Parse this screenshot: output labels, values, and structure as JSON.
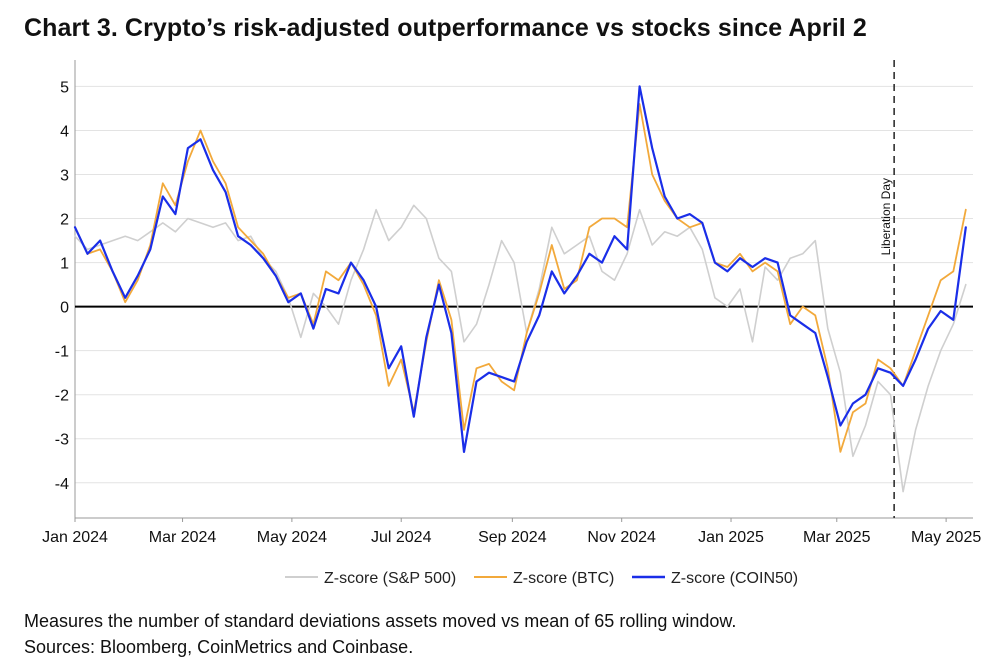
{
  "title": "Chart 3. Crypto’s risk-adjusted outperformance vs stocks since April 2",
  "notes": {
    "line1": "Measures the number of standard deviations assets moved vs mean of 65 rolling window.",
    "line2": "Sources: Bloomberg, CoinMetrics and Coinbase."
  },
  "chart_data": {
    "type": "line",
    "title": "Chart 3. Crypto’s risk-adjusted outperformance vs stocks since April 2",
    "xlabel": "",
    "ylabel": "",
    "x_range": [
      "2024-01-01",
      "2025-05-16"
    ],
    "ylim": [
      -4.8,
      5.6
    ],
    "yticks": [
      5,
      4,
      3,
      2,
      1,
      0,
      -1,
      -2,
      -3,
      -4
    ],
    "xticks": [
      {
        "date": "2024-01-01",
        "label": "Jan 2024"
      },
      {
        "date": "2024-03-01",
        "label": "Mar 2024"
      },
      {
        "date": "2024-05-01",
        "label": "May 2024"
      },
      {
        "date": "2024-07-01",
        "label": "Jul 2024"
      },
      {
        "date": "2024-09-01",
        "label": "Sep 2024"
      },
      {
        "date": "2024-11-01",
        "label": "Nov 2024"
      },
      {
        "date": "2025-01-01",
        "label": "Jan 2025"
      },
      {
        "date": "2025-03-01",
        "label": "Mar 2025"
      },
      {
        "date": "2025-05-01",
        "label": "May 2025"
      }
    ],
    "grid": "horizontal",
    "legend_position": "bottom-center",
    "annotation": {
      "label": "Liberation Day",
      "date": "2025-04-02",
      "style": "dashed-vertical"
    },
    "series": [
      {
        "name": "Z-score (S&P 500)",
        "color": "#cfcfcf",
        "points": [
          [
            "2024-01-01",
            1.6
          ],
          [
            "2024-01-08",
            1.3
          ],
          [
            "2024-01-15",
            1.4
          ],
          [
            "2024-01-22",
            1.5
          ],
          [
            "2024-01-29",
            1.6
          ],
          [
            "2024-02-05",
            1.5
          ],
          [
            "2024-02-12",
            1.7
          ],
          [
            "2024-02-19",
            1.9
          ],
          [
            "2024-02-26",
            1.7
          ],
          [
            "2024-03-04",
            2.0
          ],
          [
            "2024-03-11",
            1.9
          ],
          [
            "2024-03-18",
            1.8
          ],
          [
            "2024-03-25",
            1.9
          ],
          [
            "2024-04-01",
            1.5
          ],
          [
            "2024-04-08",
            1.6
          ],
          [
            "2024-04-15",
            1.1
          ],
          [
            "2024-04-22",
            0.8
          ],
          [
            "2024-04-29",
            0.2
          ],
          [
            "2024-05-06",
            -0.7
          ],
          [
            "2024-05-13",
            0.3
          ],
          [
            "2024-05-20",
            0.0
          ],
          [
            "2024-05-27",
            -0.4
          ],
          [
            "2024-06-03",
            0.6
          ],
          [
            "2024-06-10",
            1.3
          ],
          [
            "2024-06-17",
            2.2
          ],
          [
            "2024-06-24",
            1.5
          ],
          [
            "2024-07-01",
            1.8
          ],
          [
            "2024-07-08",
            2.3
          ],
          [
            "2024-07-15",
            2.0
          ],
          [
            "2024-07-22",
            1.1
          ],
          [
            "2024-07-29",
            0.8
          ],
          [
            "2024-08-05",
            -0.8
          ],
          [
            "2024-08-12",
            -0.4
          ],
          [
            "2024-08-19",
            0.5
          ],
          [
            "2024-08-26",
            1.5
          ],
          [
            "2024-09-02",
            1.0
          ],
          [
            "2024-09-09",
            -0.6
          ],
          [
            "2024-09-16",
            0.4
          ],
          [
            "2024-09-23",
            1.8
          ],
          [
            "2024-09-30",
            1.2
          ],
          [
            "2024-10-07",
            1.4
          ],
          [
            "2024-10-14",
            1.6
          ],
          [
            "2024-10-21",
            0.8
          ],
          [
            "2024-10-28",
            0.6
          ],
          [
            "2024-11-04",
            1.2
          ],
          [
            "2024-11-11",
            2.2
          ],
          [
            "2024-11-18",
            1.4
          ],
          [
            "2024-11-25",
            1.7
          ],
          [
            "2024-12-02",
            1.6
          ],
          [
            "2024-12-09",
            1.8
          ],
          [
            "2024-12-16",
            1.3
          ],
          [
            "2024-12-23",
            0.2
          ],
          [
            "2024-12-30",
            0.0
          ],
          [
            "2025-01-06",
            0.4
          ],
          [
            "2025-01-13",
            -0.8
          ],
          [
            "2025-01-20",
            0.9
          ],
          [
            "2025-01-27",
            0.6
          ],
          [
            "2025-02-03",
            1.1
          ],
          [
            "2025-02-10",
            1.2
          ],
          [
            "2025-02-17",
            1.5
          ],
          [
            "2025-02-24",
            -0.5
          ],
          [
            "2025-03-03",
            -1.5
          ],
          [
            "2025-03-10",
            -3.4
          ],
          [
            "2025-03-17",
            -2.7
          ],
          [
            "2025-03-24",
            -1.7
          ],
          [
            "2025-03-31",
            -2.0
          ],
          [
            "2025-04-07",
            -4.2
          ],
          [
            "2025-04-14",
            -2.8
          ],
          [
            "2025-04-21",
            -1.8
          ],
          [
            "2025-04-28",
            -1.0
          ],
          [
            "2025-05-05",
            -0.4
          ],
          [
            "2025-05-12",
            0.5
          ]
        ]
      },
      {
        "name": "Z-score (BTC)",
        "color": "#f2a93b",
        "points": [
          [
            "2024-01-01",
            1.8
          ],
          [
            "2024-01-08",
            1.2
          ],
          [
            "2024-01-15",
            1.3
          ],
          [
            "2024-01-22",
            0.8
          ],
          [
            "2024-01-29",
            0.1
          ],
          [
            "2024-02-05",
            0.6
          ],
          [
            "2024-02-12",
            1.4
          ],
          [
            "2024-02-19",
            2.8
          ],
          [
            "2024-02-26",
            2.3
          ],
          [
            "2024-03-04",
            3.3
          ],
          [
            "2024-03-11",
            4.0
          ],
          [
            "2024-03-18",
            3.3
          ],
          [
            "2024-03-25",
            2.8
          ],
          [
            "2024-04-01",
            1.8
          ],
          [
            "2024-04-08",
            1.5
          ],
          [
            "2024-04-15",
            1.2
          ],
          [
            "2024-04-22",
            0.7
          ],
          [
            "2024-04-29",
            0.2
          ],
          [
            "2024-05-06",
            0.3
          ],
          [
            "2024-05-13",
            -0.4
          ],
          [
            "2024-05-20",
            0.8
          ],
          [
            "2024-05-27",
            0.6
          ],
          [
            "2024-06-03",
            1.0
          ],
          [
            "2024-06-10",
            0.5
          ],
          [
            "2024-06-17",
            -0.2
          ],
          [
            "2024-06-24",
            -1.8
          ],
          [
            "2024-07-01",
            -1.2
          ],
          [
            "2024-07-08",
            -2.4
          ],
          [
            "2024-07-15",
            -0.8
          ],
          [
            "2024-07-22",
            0.6
          ],
          [
            "2024-07-29",
            -0.3
          ],
          [
            "2024-08-05",
            -2.8
          ],
          [
            "2024-08-12",
            -1.4
          ],
          [
            "2024-08-19",
            -1.3
          ],
          [
            "2024-08-26",
            -1.7
          ],
          [
            "2024-09-02",
            -1.9
          ],
          [
            "2024-09-09",
            -0.6
          ],
          [
            "2024-09-16",
            0.3
          ],
          [
            "2024-09-23",
            1.4
          ],
          [
            "2024-09-30",
            0.4
          ],
          [
            "2024-10-07",
            0.6
          ],
          [
            "2024-10-14",
            1.8
          ],
          [
            "2024-10-21",
            2.0
          ],
          [
            "2024-10-28",
            2.0
          ],
          [
            "2024-11-04",
            1.8
          ],
          [
            "2024-11-11",
            4.6
          ],
          [
            "2024-11-18",
            3.0
          ],
          [
            "2024-11-25",
            2.4
          ],
          [
            "2024-12-02",
            2.0
          ],
          [
            "2024-12-09",
            1.8
          ],
          [
            "2024-12-16",
            1.9
          ],
          [
            "2024-12-23",
            1.0
          ],
          [
            "2024-12-30",
            0.9
          ],
          [
            "2025-01-06",
            1.2
          ],
          [
            "2025-01-13",
            0.8
          ],
          [
            "2025-01-20",
            1.0
          ],
          [
            "2025-01-27",
            0.8
          ],
          [
            "2025-02-03",
            -0.4
          ],
          [
            "2025-02-10",
            0.0
          ],
          [
            "2025-02-17",
            -0.2
          ],
          [
            "2025-02-24",
            -1.4
          ],
          [
            "2025-03-03",
            -3.3
          ],
          [
            "2025-03-10",
            -2.4
          ],
          [
            "2025-03-17",
            -2.2
          ],
          [
            "2025-03-24",
            -1.2
          ],
          [
            "2025-03-31",
            -1.4
          ],
          [
            "2025-04-07",
            -1.8
          ],
          [
            "2025-04-14",
            -1.0
          ],
          [
            "2025-04-21",
            -0.2
          ],
          [
            "2025-04-28",
            0.6
          ],
          [
            "2025-05-05",
            0.8
          ],
          [
            "2025-05-12",
            2.2
          ]
        ]
      },
      {
        "name": "Z-score (COIN50)",
        "color": "#1a2ee8",
        "points": [
          [
            "2024-01-01",
            1.8
          ],
          [
            "2024-01-08",
            1.2
          ],
          [
            "2024-01-15",
            1.5
          ],
          [
            "2024-01-22",
            0.8
          ],
          [
            "2024-01-29",
            0.2
          ],
          [
            "2024-02-05",
            0.7
          ],
          [
            "2024-02-12",
            1.3
          ],
          [
            "2024-02-19",
            2.5
          ],
          [
            "2024-02-26",
            2.1
          ],
          [
            "2024-03-04",
            3.6
          ],
          [
            "2024-03-11",
            3.8
          ],
          [
            "2024-03-18",
            3.1
          ],
          [
            "2024-03-25",
            2.6
          ],
          [
            "2024-04-01",
            1.6
          ],
          [
            "2024-04-08",
            1.4
          ],
          [
            "2024-04-15",
            1.1
          ],
          [
            "2024-04-22",
            0.7
          ],
          [
            "2024-04-29",
            0.1
          ],
          [
            "2024-05-06",
            0.3
          ],
          [
            "2024-05-13",
            -0.5
          ],
          [
            "2024-05-20",
            0.4
          ],
          [
            "2024-05-27",
            0.3
          ],
          [
            "2024-06-03",
            1.0
          ],
          [
            "2024-06-10",
            0.6
          ],
          [
            "2024-06-17",
            0.0
          ],
          [
            "2024-06-24",
            -1.4
          ],
          [
            "2024-07-01",
            -0.9
          ],
          [
            "2024-07-08",
            -2.5
          ],
          [
            "2024-07-15",
            -0.7
          ],
          [
            "2024-07-22",
            0.5
          ],
          [
            "2024-07-29",
            -0.6
          ],
          [
            "2024-08-05",
            -3.3
          ],
          [
            "2024-08-12",
            -1.7
          ],
          [
            "2024-08-19",
            -1.5
          ],
          [
            "2024-08-26",
            -1.6
          ],
          [
            "2024-09-02",
            -1.7
          ],
          [
            "2024-09-09",
            -0.8
          ],
          [
            "2024-09-16",
            -0.2
          ],
          [
            "2024-09-23",
            0.8
          ],
          [
            "2024-09-30",
            0.3
          ],
          [
            "2024-10-07",
            0.7
          ],
          [
            "2024-10-14",
            1.2
          ],
          [
            "2024-10-21",
            1.0
          ],
          [
            "2024-10-28",
            1.6
          ],
          [
            "2024-11-04",
            1.3
          ],
          [
            "2024-11-11",
            5.0
          ],
          [
            "2024-11-18",
            3.6
          ],
          [
            "2024-11-25",
            2.5
          ],
          [
            "2024-12-02",
            2.0
          ],
          [
            "2024-12-09",
            2.1
          ],
          [
            "2024-12-16",
            1.9
          ],
          [
            "2024-12-23",
            1.0
          ],
          [
            "2024-12-30",
            0.8
          ],
          [
            "2025-01-06",
            1.1
          ],
          [
            "2025-01-13",
            0.9
          ],
          [
            "2025-01-20",
            1.1
          ],
          [
            "2025-01-27",
            1.0
          ],
          [
            "2025-02-03",
            -0.2
          ],
          [
            "2025-02-10",
            -0.4
          ],
          [
            "2025-02-17",
            -0.6
          ],
          [
            "2025-02-24",
            -1.6
          ],
          [
            "2025-03-03",
            -2.7
          ],
          [
            "2025-03-10",
            -2.2
          ],
          [
            "2025-03-17",
            -2.0
          ],
          [
            "2025-03-24",
            -1.4
          ],
          [
            "2025-03-31",
            -1.5
          ],
          [
            "2025-04-07",
            -1.8
          ],
          [
            "2025-04-14",
            -1.2
          ],
          [
            "2025-04-21",
            -0.5
          ],
          [
            "2025-04-28",
            -0.1
          ],
          [
            "2025-05-05",
            -0.3
          ],
          [
            "2025-05-12",
            1.8
          ]
        ]
      }
    ]
  }
}
